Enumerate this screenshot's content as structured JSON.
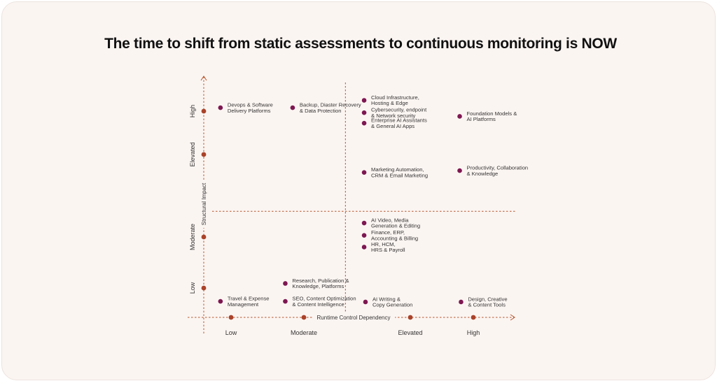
{
  "page": {
    "title": "The time to shift from static assessments to continuous monitoring is NOW"
  },
  "colors": {
    "background": "#fbf5f2",
    "axis": "#b5552b",
    "point": "#7d1751",
    "tick_marker": "#a9432a",
    "text": "#333333"
  },
  "chart_data": {
    "type": "scatter",
    "title": "The time to shift from static assessments to continuous monitoring is NOW",
    "xlabel": "Runtime Control Dependency",
    "ylabel": "Structural Impact",
    "x_ticks": [
      "Low",
      "Moderate",
      "Elevated",
      "High"
    ],
    "y_ticks": [
      "Low",
      "Moderate",
      "Elevated",
      "High"
    ],
    "x_range": [
      0.6,
      5.2
    ],
    "y_range": [
      0.6,
      4.5
    ],
    "quadrant_divider": {
      "x": 2.72,
      "y": 2.32
    },
    "grid": false,
    "points": [
      {
        "lines": [
          "Devops & Software",
          "Delivery Platforms"
        ],
        "x": 0.85,
        "y": 4.0
      },
      {
        "lines": [
          "Backup, Diaster Recovery",
          "& Data Protection"
        ],
        "x": 1.93,
        "y": 4.0
      },
      {
        "lines": [
          "Cloud Infrastructure,",
          "Hosting & Edge"
        ],
        "x": 3.0,
        "y": 4.12
      },
      {
        "lines": [
          "Cybersecurity, endpoint",
          "& Network security"
        ],
        "x": 3.0,
        "y": 3.92
      },
      {
        "lines": [
          "Enterprise AI Assistants",
          "& General AI Apps"
        ],
        "x": 3.0,
        "y": 3.75
      },
      {
        "lines": [
          "Foundation Models &",
          "AI Platforms"
        ],
        "x": 4.43,
        "y": 3.86
      },
      {
        "lines": [
          "Marketing Automation,",
          "CRM & Email Marketing"
        ],
        "x": 3.0,
        "y": 2.95
      },
      {
        "lines": [
          "Productivity, Collaboration",
          "& Knowledge"
        ],
        "x": 4.43,
        "y": 2.98
      },
      {
        "lines": [
          "AI Video, Media",
          "Generation & Editing"
        ],
        "x": 3.0,
        "y": 2.13
      },
      {
        "lines": [
          "Finance, ERP,",
          "Accounting & Billing"
        ],
        "x": 3.0,
        "y": 1.93
      },
      {
        "lines": [
          "HR, HCM,",
          "HRS & Payroll"
        ],
        "x": 3.0,
        "y": 1.74
      },
      {
        "lines": [
          "Research, Publication &",
          "Knowledge, Platforms"
        ],
        "x": 1.82,
        "y": 1.15
      },
      {
        "lines": [
          "Travel & Expense",
          "Management"
        ],
        "x": 0.85,
        "y": 0.86
      },
      {
        "lines": [
          "SEO, Content Optimization",
          "& Content Intelligence"
        ],
        "x": 1.82,
        "y": 0.86
      },
      {
        "lines": [
          "AI Writing &",
          "Copy Generation"
        ],
        "x": 3.02,
        "y": 0.85
      },
      {
        "lines": [
          "Design, Creative",
          "& Content Tools"
        ],
        "x": 4.45,
        "y": 0.85
      }
    ]
  }
}
